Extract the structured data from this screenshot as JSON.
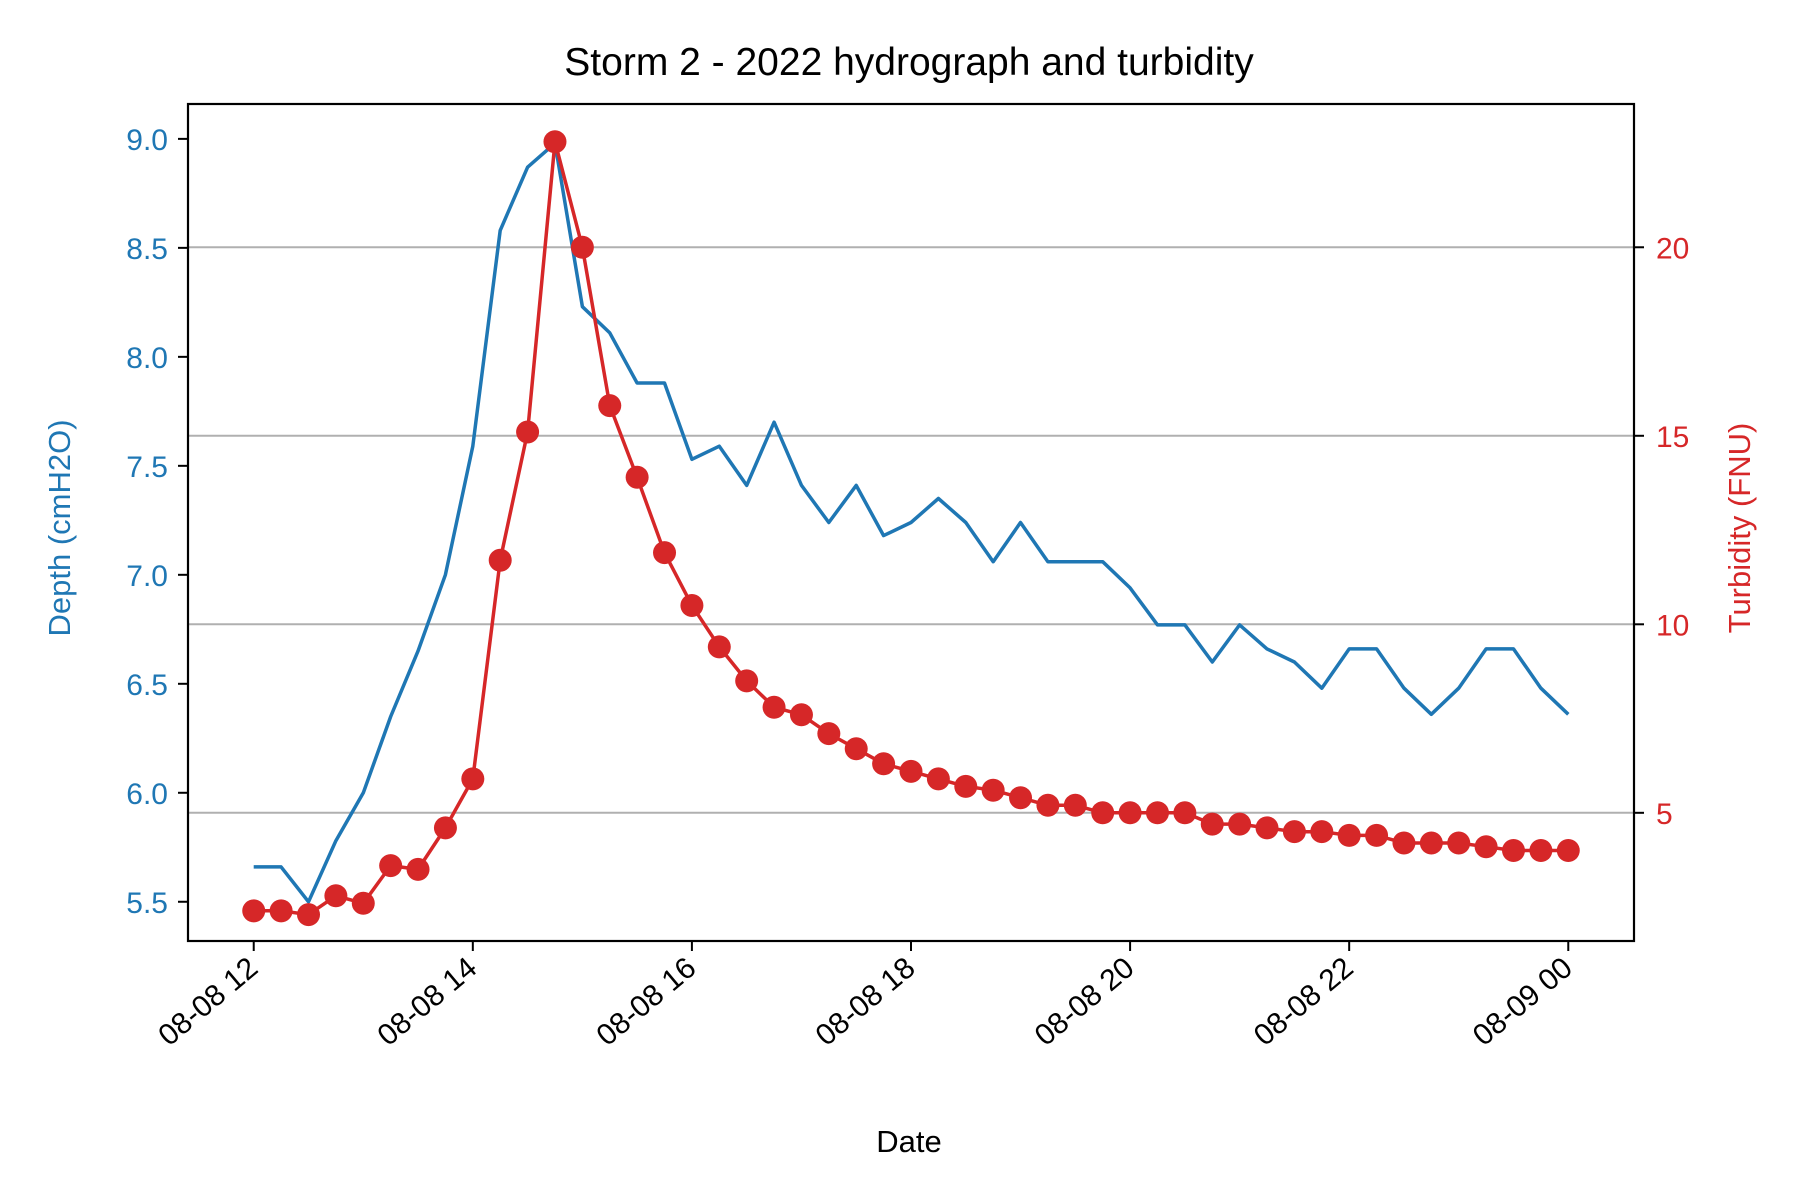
{
  "chart_data": {
    "type": "line",
    "title": "Storm 2 - 2022 hydrograph and turbidity",
    "xlabel": "Date",
    "x_ticks": [
      "08-08 12",
      "08-08 14",
      "08-08 16",
      "08-08 18",
      "08-08 20",
      "08-08 22",
      "08-09 00"
    ],
    "x_tick_hours": [
      12,
      14,
      16,
      18,
      20,
      22,
      24
    ],
    "xlim_hours": [
      11.4,
      24.6
    ],
    "left_axis": {
      "label": "Depth (cmH2O)",
      "color": "#1f77b4",
      "ylim": [
        5.32,
        9.16
      ],
      "ticks": [
        "5.5",
        "6.0",
        "6.5",
        "7.0",
        "7.5",
        "8.0",
        "8.5",
        "9.0"
      ],
      "tick_values": [
        5.5,
        6.0,
        6.5,
        7.0,
        7.5,
        8.0,
        8.5,
        9.0
      ]
    },
    "right_axis": {
      "label": "Turbidity (FNU)",
      "color": "#d62728",
      "ylim": [
        1.6,
        23.8
      ],
      "ticks": [
        "5",
        "10",
        "15",
        "20"
      ],
      "tick_values": [
        5,
        10,
        15,
        20
      ],
      "grid": true
    },
    "series": [
      {
        "name": "Depth",
        "axis": "left",
        "color": "#1f77b4",
        "marker": "none",
        "x": [
          "08-08 12:00",
          "08-08 12:15",
          "08-08 12:30",
          "08-08 12:45",
          "08-08 13:00",
          "08-08 13:15",
          "08-08 13:30",
          "08-08 13:45",
          "08-08 14:00",
          "08-08 14:15",
          "08-08 14:30",
          "08-08 14:45",
          "08-08 15:00",
          "08-08 15:15",
          "08-08 15:30",
          "08-08 15:45",
          "08-08 16:00",
          "08-08 16:15",
          "08-08 16:30",
          "08-08 16:45",
          "08-08 17:00",
          "08-08 17:15",
          "08-08 17:30",
          "08-08 17:45",
          "08-08 18:00",
          "08-08 18:15",
          "08-08 18:30",
          "08-08 18:45",
          "08-08 19:00",
          "08-08 19:15",
          "08-08 19:30",
          "08-08 19:45",
          "08-08 20:00",
          "08-08 20:15",
          "08-08 20:30",
          "08-08 20:45",
          "08-08 21:00",
          "08-08 21:15",
          "08-08 21:30",
          "08-08 21:45",
          "08-08 22:00",
          "08-08 22:15",
          "08-08 22:30",
          "08-08 22:45",
          "08-08 23:00",
          "08-08 23:15",
          "08-08 23:30",
          "08-08 23:45",
          "08-09 00:00"
        ],
        "x_hours": [
          12.0,
          12.25,
          12.5,
          12.75,
          13.0,
          13.25,
          13.5,
          13.75,
          14.0,
          14.25,
          14.5,
          14.75,
          15.0,
          15.25,
          15.5,
          15.75,
          16.0,
          16.25,
          16.5,
          16.75,
          17.0,
          17.25,
          17.5,
          17.75,
          18.0,
          18.25,
          18.5,
          18.75,
          19.0,
          19.25,
          19.5,
          19.75,
          20.0,
          20.25,
          20.5,
          20.75,
          21.0,
          21.25,
          21.5,
          21.75,
          22.0,
          22.25,
          22.5,
          22.75,
          23.0,
          23.25,
          23.5,
          23.75,
          24.0
        ],
        "y": [
          5.66,
          5.66,
          5.5,
          5.78,
          6.0,
          6.35,
          6.65,
          7.0,
          7.59,
          8.58,
          8.87,
          8.98,
          8.23,
          8.11,
          7.88,
          7.88,
          7.53,
          7.59,
          7.41,
          7.7,
          7.41,
          7.24,
          7.41,
          7.18,
          7.24,
          7.35,
          7.24,
          7.06,
          7.24,
          7.06,
          7.06,
          7.06,
          6.94,
          6.77,
          6.77,
          6.6,
          6.77,
          6.66,
          6.6,
          6.48,
          6.66,
          6.66,
          6.48,
          6.36,
          6.48,
          6.66,
          6.66,
          6.48,
          6.36
        ]
      },
      {
        "name": "Turbidity",
        "axis": "right",
        "color": "#d62728",
        "marker": "circle",
        "x": [
          "08-08 12:00",
          "08-08 12:15",
          "08-08 12:30",
          "08-08 12:45",
          "08-08 13:00",
          "08-08 13:15",
          "08-08 13:30",
          "08-08 13:45",
          "08-08 14:00",
          "08-08 14:15",
          "08-08 14:30",
          "08-08 14:45",
          "08-08 15:00",
          "08-08 15:15",
          "08-08 15:30",
          "08-08 15:45",
          "08-08 16:00",
          "08-08 16:15",
          "08-08 16:30",
          "08-08 16:45",
          "08-08 17:00",
          "08-08 17:15",
          "08-08 17:30",
          "08-08 17:45",
          "08-08 18:00",
          "08-08 18:15",
          "08-08 18:30",
          "08-08 18:45",
          "08-08 19:00",
          "08-08 19:15",
          "08-08 19:30",
          "08-08 19:45",
          "08-08 20:00",
          "08-08 20:15",
          "08-08 20:30",
          "08-08 20:45",
          "08-08 21:00",
          "08-08 21:15",
          "08-08 21:30",
          "08-08 21:45",
          "08-08 22:00",
          "08-08 22:15",
          "08-08 22:30",
          "08-08 22:45",
          "08-08 23:00",
          "08-08 23:15",
          "08-08 23:30",
          "08-08 23:45",
          "08-09 00:00"
        ],
        "x_hours": [
          12.0,
          12.25,
          12.5,
          12.75,
          13.0,
          13.25,
          13.5,
          13.75,
          14.0,
          14.25,
          14.5,
          14.75,
          15.0,
          15.25,
          15.5,
          15.75,
          16.0,
          16.25,
          16.5,
          16.75,
          17.0,
          17.25,
          17.5,
          17.75,
          18.0,
          18.25,
          18.5,
          18.75,
          19.0,
          19.25,
          19.5,
          19.75,
          20.0,
          20.25,
          20.5,
          20.75,
          21.0,
          21.25,
          21.5,
          21.75,
          22.0,
          22.25,
          22.5,
          22.75,
          23.0,
          23.25,
          23.5,
          23.75,
          24.0
        ],
        "y": [
          2.4,
          2.4,
          2.3,
          2.8,
          2.6,
          3.6,
          3.5,
          4.6,
          5.9,
          11.7,
          15.1,
          22.8,
          20.0,
          15.8,
          13.9,
          11.9,
          10.5,
          9.4,
          8.5,
          7.8,
          7.6,
          7.1,
          6.7,
          6.3,
          6.1,
          5.9,
          5.7,
          5.6,
          5.4,
          5.2,
          5.2,
          5.0,
          5.0,
          5.0,
          5.0,
          4.7,
          4.7,
          4.6,
          4.5,
          4.5,
          4.4,
          4.4,
          4.2,
          4.2,
          4.2,
          4.1,
          4.0,
          4.0,
          4.0
        ]
      }
    ]
  }
}
